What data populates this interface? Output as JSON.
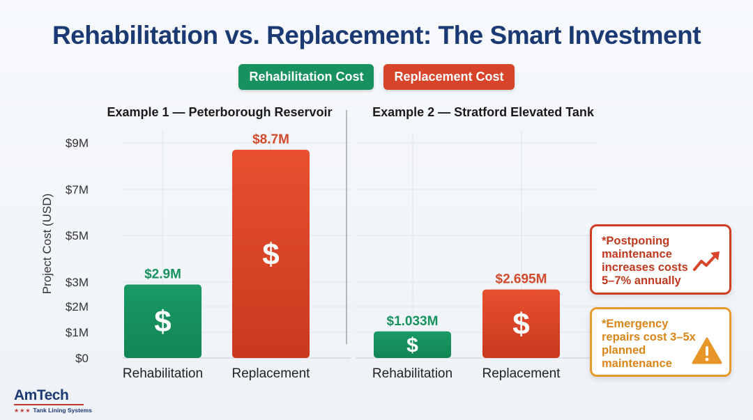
{
  "title": "Rehabilitation vs. Replacement: The Smart Investment",
  "legend": {
    "rehab": "Rehabilitation Cost",
    "replace": "Replacement Cost",
    "rehab_color": "#17925f",
    "replace_color": "#d8442a"
  },
  "chart_data": {
    "type": "bar",
    "ylabel": "Project Cost (USD)",
    "yticks": [
      {
        "value": 0,
        "label": "$0"
      },
      {
        "value": 1,
        "label": "$1M"
      },
      {
        "value": 2,
        "label": "$2M"
      },
      {
        "value": 3,
        "label": "$3M"
      },
      {
        "value": 5,
        "label": "$5M"
      },
      {
        "value": 7,
        "label": "$7M"
      },
      {
        "value": 9,
        "label": "$9M"
      }
    ],
    "panels": [
      {
        "title": "Example 1 — Peterborough Reservoir",
        "categories": [
          "Rehabilitation",
          "Replacement"
        ],
        "values": [
          2.9,
          8.7
        ],
        "value_labels": [
          "$2.9M",
          "$8.7M"
        ]
      },
      {
        "title": "Example 2 — Stratford Elevated Tank",
        "categories": [
          "Rehabilitation",
          "Replacement"
        ],
        "values": [
          1.033,
          2.695
        ],
        "value_labels": [
          "$1.033M",
          "$2.695M"
        ]
      }
    ],
    "bar_symbol": "$",
    "grid": true
  },
  "callouts": [
    {
      "text": "*Postponing maintenance increases costs 5–7% annually",
      "icon": "trend-up-arrow-icon"
    },
    {
      "text": "*Emergency repairs cost 3–5x planned maintenance",
      "icon": "warning-triangle-icon"
    }
  ],
  "logo": {
    "name": "AmTech",
    "stars": "★★★",
    "tagline": "Tank Lining Systems"
  }
}
